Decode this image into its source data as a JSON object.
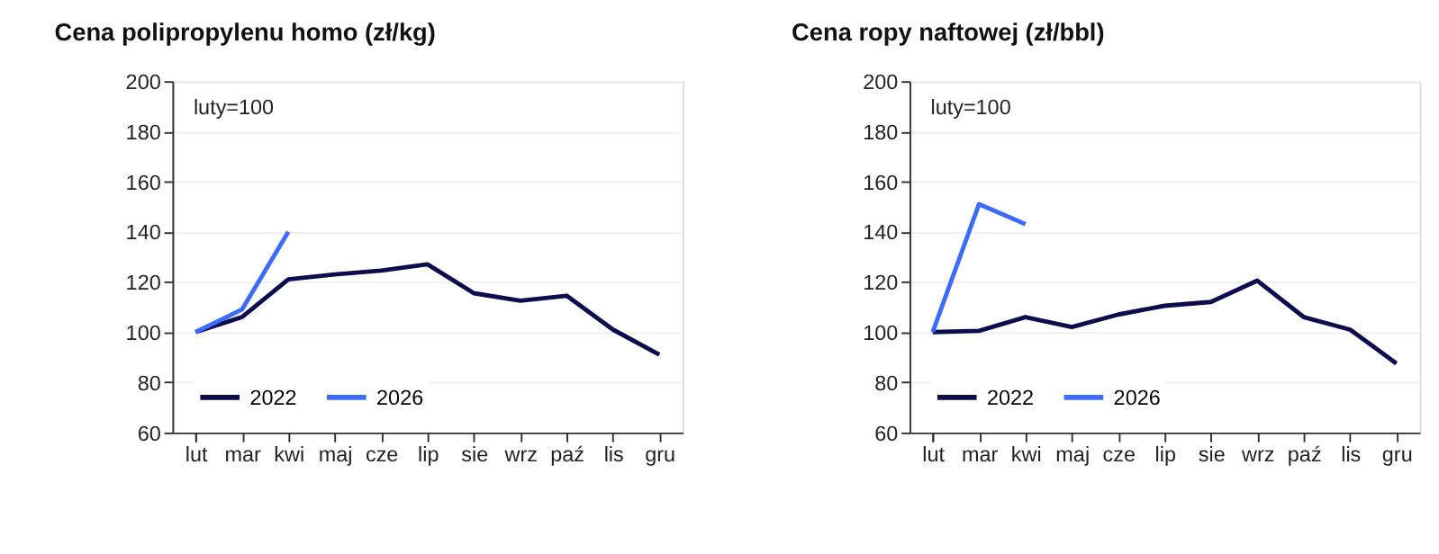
{
  "chart_data": [
    {
      "type": "line",
      "title": "Cena polipropylenu homo (zł/kg)",
      "categories": [
        "lut",
        "mar",
        "kwi",
        "maj",
        "cze",
        "lip",
        "sie",
        "wrz",
        "paź",
        "lis",
        "gru"
      ],
      "series": [
        {
          "name": "2022",
          "color": "#0d0d4d",
          "values": [
            100,
            106,
            121,
            123,
            124.5,
            127,
            115.5,
            112.5,
            114.5,
            101,
            91
          ]
        },
        {
          "name": "2026",
          "color": "#3d6bff",
          "values": [
            100,
            109,
            140,
            null,
            null,
            null,
            null,
            null,
            null,
            null,
            null
          ]
        }
      ],
      "ylim": [
        60,
        200
      ],
      "yticks": [
        60,
        80,
        100,
        120,
        140,
        160,
        180,
        200
      ],
      "grid": "y",
      "legend": "bottom left",
      "marker": "none",
      "line_style": "solid",
      "annotations": [
        "luty=100"
      ]
    },
    {
      "type": "line",
      "title": "Cena ropy naftowej (zł/bbl)",
      "categories": [
        "lut",
        "mar",
        "kwi",
        "maj",
        "cze",
        "lip",
        "sie",
        "wrz",
        "paź",
        "lis",
        "gru"
      ],
      "series": [
        {
          "name": "2022",
          "color": "#0d0d4d",
          "values": [
            100,
            100.5,
            106,
            102,
            107,
            110.5,
            112,
            120.5,
            106,
            101,
            87.5
          ]
        },
        {
          "name": "2026",
          "color": "#3d6bff",
          "values": [
            100,
            151,
            143,
            null,
            null,
            null,
            null,
            null,
            null,
            null,
            null
          ]
        }
      ],
      "ylim": [
        60,
        200
      ],
      "yticks": [
        60,
        80,
        100,
        120,
        140,
        160,
        180,
        200
      ],
      "grid": "y",
      "legend": "bottom left",
      "marker": "none",
      "line_style": "solid",
      "annotations": [
        "luty=100"
      ]
    }
  ]
}
